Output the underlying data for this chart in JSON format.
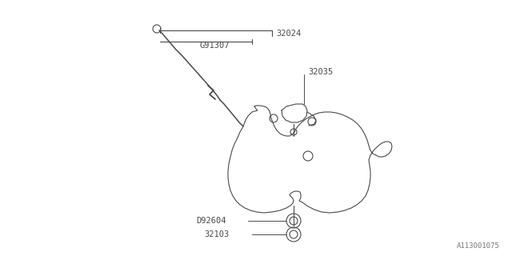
{
  "bg_color": "#ffffff",
  "line_color": "#4a4a4a",
  "text_color": "#4a4a4a",
  "footer": "A113001075",
  "fig_w": 6.4,
  "fig_h": 3.2,
  "dpi": 100
}
